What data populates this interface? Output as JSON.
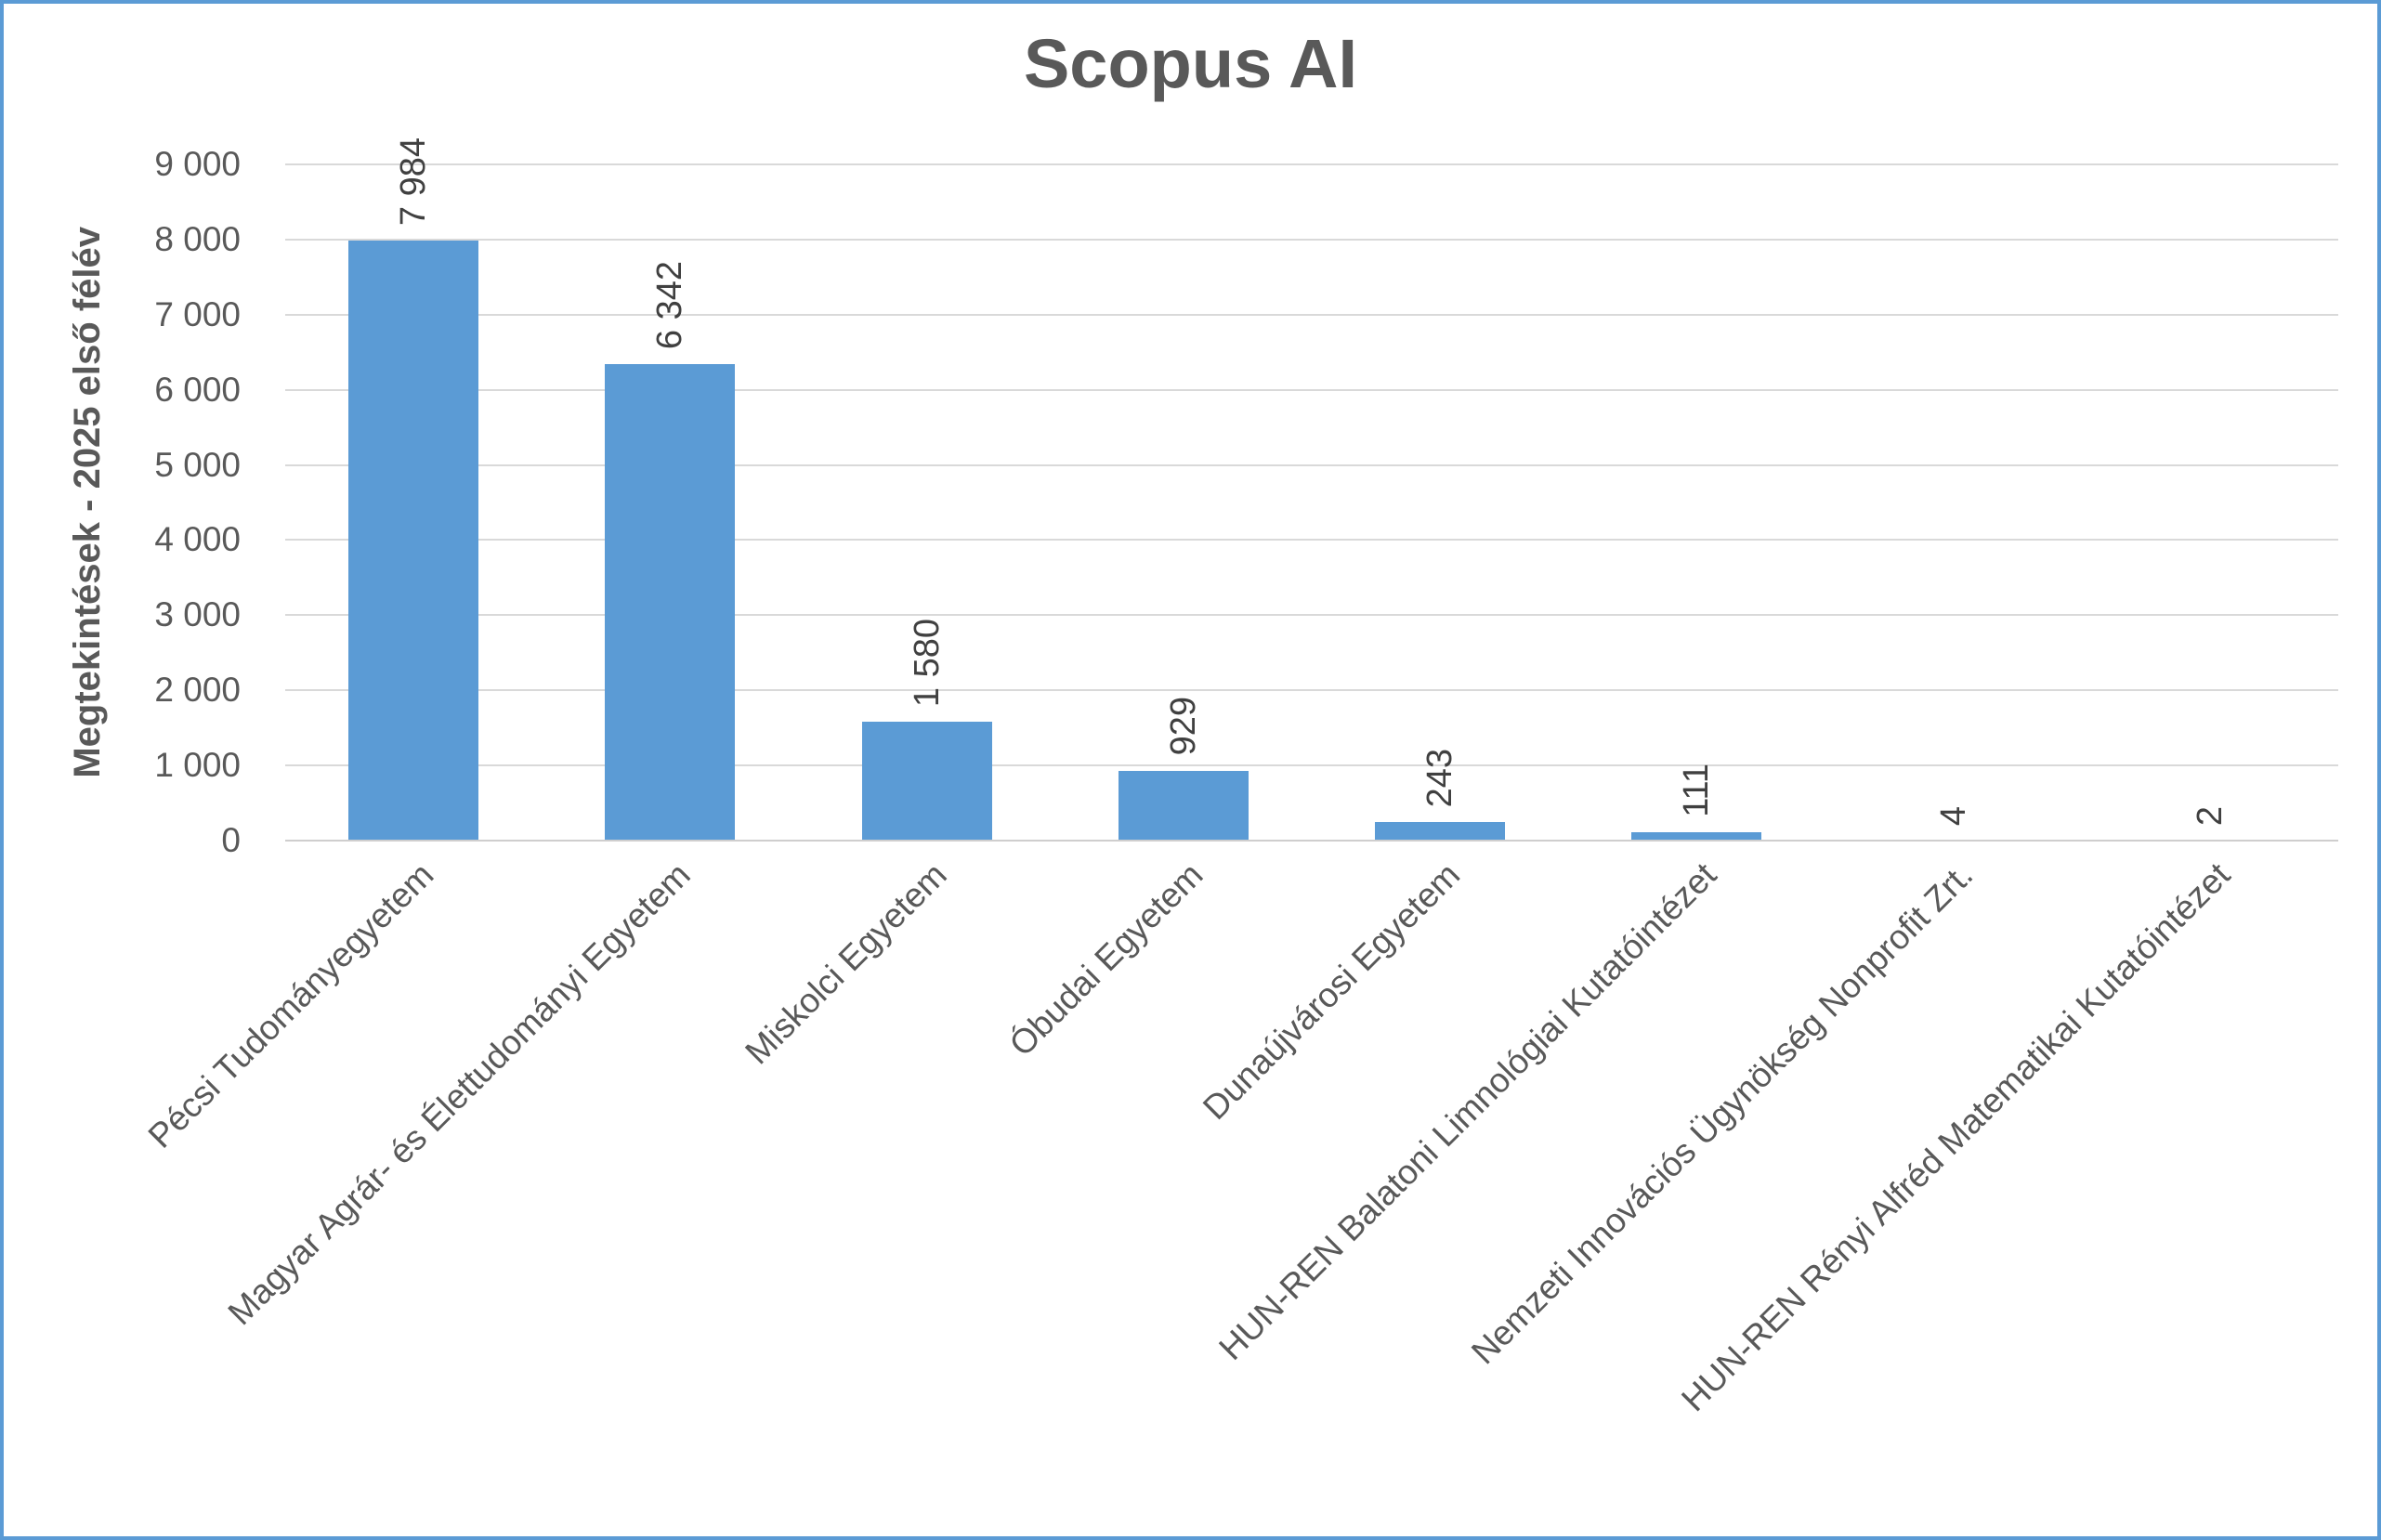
{
  "frame": {
    "border_color": "#5B9BD5",
    "background_color": "#FFFFFF"
  },
  "chart_data": {
    "type": "bar",
    "title": "Scopus AI",
    "xlabel": "",
    "ylabel": "Megtekintések - 2025 első félév",
    "categories": [
      "Pécsi Tudományegyetem",
      "Magyar Agrár- és Élettudományi Egyetem",
      "Miskolci Egyetem",
      "Óbudai Egyetem",
      "Dunaújvárosi Egyetem",
      "HUN-REN Balatoni Limnológiai Kutatóintézet",
      "Nemzeti Innovációs Ügynökség Nonprofit Zrt.",
      "HUN-REN Rényi Alfréd Matematikai Kutatóintézet"
    ],
    "values": [
      7984,
      6342,
      1580,
      929,
      243,
      111,
      4,
      2
    ],
    "value_labels": [
      "7 984",
      "6 342",
      "1 580",
      "929",
      "243",
      "111",
      "4",
      "2"
    ],
    "y_tick_values": [
      0,
      1000,
      2000,
      3000,
      4000,
      5000,
      6000,
      7000,
      8000,
      9000
    ],
    "y_tick_labels": [
      "0",
      "1 000",
      "2 000",
      "3 000",
      "4 000",
      "5 000",
      "6 000",
      "7 000",
      "8 000",
      "9 000"
    ],
    "ylim": [
      0,
      9000
    ],
    "grid": true,
    "legend": "none",
    "bar_color": "#5B9BD5",
    "gridline_color": "#D9D9D9",
    "axis_line_color": "#CFCECE",
    "title_color": "#595959",
    "tick_label_color": "#595959",
    "data_label_color": "#404040"
  }
}
